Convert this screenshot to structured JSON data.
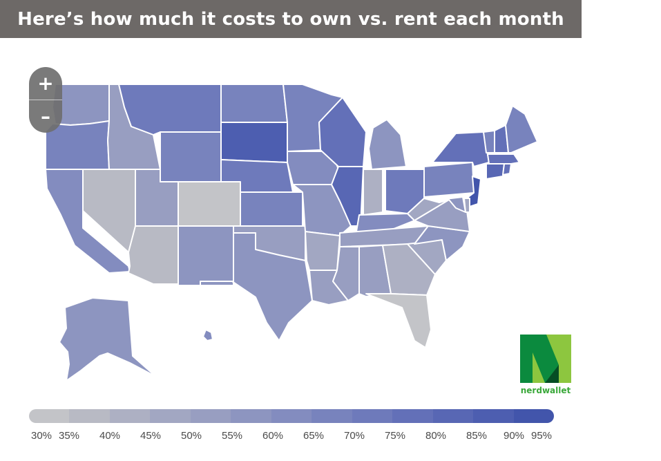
{
  "title": "Here’s how much it costs to own vs. rent each month",
  "zoom": {
    "in_label": "+",
    "out_label": "–"
  },
  "logo": {
    "text": "nerdwallet",
    "green_dark": "#0b8a3e",
    "green_light": "#8dc63f"
  },
  "legend": {
    "labels": [
      "30%",
      "35%",
      "40%",
      "45%",
      "50%",
      "55%",
      "60%",
      "65%",
      "70%",
      "75%",
      "80%",
      "85%",
      "90%",
      "95%"
    ],
    "colors": [
      "#c3c4c8",
      "#b8bac4",
      "#adb0c3",
      "#a2a7c2",
      "#989ec1",
      "#8d95c0",
      "#838cbf",
      "#7883bd",
      "#6e7abb",
      "#6370b8",
      "#5867b4",
      "#4d5eb0",
      "#4255ab"
    ]
  },
  "map": {
    "color_scale": [
      "#c3c4c8",
      "#b8bac4",
      "#adb0c3",
      "#a2a7c2",
      "#989ec1",
      "#8d95c0",
      "#838cbf",
      "#7883bd",
      "#6e7abb",
      "#6370b8",
      "#5867b4",
      "#4d5eb0",
      "#4255ab"
    ],
    "states": [
      {
        "id": "WA",
        "level": 5
      },
      {
        "id": "OR",
        "level": 7
      },
      {
        "id": "CA",
        "level": 6
      },
      {
        "id": "ID",
        "level": 4
      },
      {
        "id": "NV",
        "level": 1
      },
      {
        "id": "AZ",
        "level": 1
      },
      {
        "id": "UT",
        "level": 4
      },
      {
        "id": "MT",
        "level": 8
      },
      {
        "id": "WY",
        "level": 7
      },
      {
        "id": "CO",
        "level": 0
      },
      {
        "id": "NM",
        "level": 5
      },
      {
        "id": "ND",
        "level": 7
      },
      {
        "id": "SD",
        "level": 11
      },
      {
        "id": "NE",
        "level": 8
      },
      {
        "id": "KS",
        "level": 7
      },
      {
        "id": "OK",
        "level": 4
      },
      {
        "id": "TX",
        "level": 5
      },
      {
        "id": "MN",
        "level": 7
      },
      {
        "id": "IA",
        "level": 6
      },
      {
        "id": "MO",
        "level": 5
      },
      {
        "id": "AR",
        "level": 3
      },
      {
        "id": "LA",
        "level": 4
      },
      {
        "id": "WI",
        "level": 9
      },
      {
        "id": "IL",
        "level": 10
      },
      {
        "id": "MI",
        "level": 5
      },
      {
        "id": "IN",
        "level": 2
      },
      {
        "id": "OH",
        "level": 8
      },
      {
        "id": "KY",
        "level": 6
      },
      {
        "id": "TN",
        "level": 4
      },
      {
        "id": "MS",
        "level": 4
      },
      {
        "id": "AL",
        "level": 4
      },
      {
        "id": "GA",
        "level": 2
      },
      {
        "id": "FL",
        "level": 0
      },
      {
        "id": "SC",
        "level": 3
      },
      {
        "id": "NC",
        "level": 5
      },
      {
        "id": "VA",
        "level": 4
      },
      {
        "id": "WV",
        "level": 3
      },
      {
        "id": "PA",
        "level": 7
      },
      {
        "id": "NY",
        "level": 9
      },
      {
        "id": "NJ",
        "level": 12
      },
      {
        "id": "DE",
        "level": 3
      },
      {
        "id": "MD",
        "level": 5
      },
      {
        "id": "VT",
        "level": 7
      },
      {
        "id": "NH",
        "level": 9
      },
      {
        "id": "ME",
        "level": 7
      },
      {
        "id": "MA",
        "level": 9
      },
      {
        "id": "CT",
        "level": 10
      },
      {
        "id": "RI",
        "level": 9
      },
      {
        "id": "AK",
        "level": 5
      },
      {
        "id": "HI",
        "level": 6
      }
    ]
  }
}
